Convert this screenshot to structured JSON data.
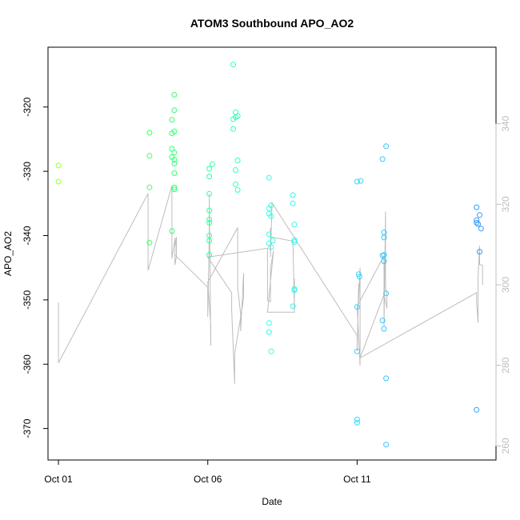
{
  "chart_data": {
    "type": "scatter",
    "title": "ATOM3 Southbound APO_AO2",
    "xlabel": "Date",
    "ylabel": "APO_AO2",
    "x_tick_labels": [
      "Oct 01",
      "Oct 06",
      "Oct 11"
    ],
    "x_tick_values": [
      0,
      5,
      10
    ],
    "x_range": [
      -0.35,
      14.65
    ],
    "y_range": [
      -374.9,
      -310.7
    ],
    "y_ticks": [
      -370,
      -360,
      -350,
      -340,
      -330,
      -320
    ],
    "y_tick_labels": [
      "-370",
      "-360",
      "-350",
      "-340",
      "-330",
      "-320"
    ],
    "y2_range": [
      256.5,
      359.0
    ],
    "y2_ticks": [
      260,
      280,
      300,
      320,
      340
    ],
    "y2_tick_labels": [
      "260",
      "280",
      "300",
      "320",
      "340"
    ],
    "grid": false,
    "legend": "none",
    "colors": {
      "point_gradient": [
        "#9aff33",
        "#33ff66",
        "#33ffe6",
        "#33ccff",
        "#3399ff"
      ],
      "line": "#bdbdbd",
      "axis": "#000000",
      "right_axis": "#bdbdbd"
    },
    "points": [
      {
        "x": 0.0,
        "y": -329.1
      },
      {
        "x": 0.0,
        "y": -331.6
      },
      {
        "x": 3.05,
        "y": -324.0
      },
      {
        "x": 3.05,
        "y": -327.6
      },
      {
        "x": 3.05,
        "y": -332.5
      },
      {
        "x": 3.05,
        "y": -341.1
      },
      {
        "x": 3.8,
        "y": -322.0
      },
      {
        "x": 3.8,
        "y": -324.1
      },
      {
        "x": 3.8,
        "y": -326.5
      },
      {
        "x": 3.8,
        "y": -327.8
      },
      {
        "x": 3.8,
        "y": -339.3
      },
      {
        "x": 3.88,
        "y": -318.1
      },
      {
        "x": 3.88,
        "y": -320.5
      },
      {
        "x": 3.88,
        "y": -323.8
      },
      {
        "x": 3.88,
        "y": -327.1
      },
      {
        "x": 3.88,
        "y": -328.2
      },
      {
        "x": 3.88,
        "y": -328.8
      },
      {
        "x": 3.88,
        "y": -330.3
      },
      {
        "x": 3.88,
        "y": -332.5
      },
      {
        "x": 3.88,
        "y": -332.8
      },
      {
        "x": 5.05,
        "y": -329.6
      },
      {
        "x": 5.05,
        "y": -330.8
      },
      {
        "x": 5.05,
        "y": -333.5
      },
      {
        "x": 5.05,
        "y": -336.1
      },
      {
        "x": 5.05,
        "y": -337.5
      },
      {
        "x": 5.05,
        "y": -338.0
      },
      {
        "x": 5.05,
        "y": -340.0
      },
      {
        "x": 5.05,
        "y": -340.8
      },
      {
        "x": 5.05,
        "y": -343.0
      },
      {
        "x": 5.15,
        "y": -328.9
      },
      {
        "x": 5.85,
        "y": -313.4
      },
      {
        "x": 5.85,
        "y": -321.9
      },
      {
        "x": 5.85,
        "y": -323.4
      },
      {
        "x": 5.93,
        "y": -320.8
      },
      {
        "x": 5.93,
        "y": -321.6
      },
      {
        "x": 5.93,
        "y": -329.8
      },
      {
        "x": 5.93,
        "y": -332.0
      },
      {
        "x": 6.0,
        "y": -321.4
      },
      {
        "x": 6.0,
        "y": -328.3
      },
      {
        "x": 6.0,
        "y": -332.9
      },
      {
        "x": 7.05,
        "y": -331.0
      },
      {
        "x": 7.05,
        "y": -335.8
      },
      {
        "x": 7.05,
        "y": -336.6
      },
      {
        "x": 7.05,
        "y": -339.8
      },
      {
        "x": 7.05,
        "y": -341.2
      },
      {
        "x": 7.05,
        "y": -353.6
      },
      {
        "x": 7.05,
        "y": -355.0
      },
      {
        "x": 7.12,
        "y": -335.3
      },
      {
        "x": 7.12,
        "y": -337.0
      },
      {
        "x": 7.12,
        "y": -341.8
      },
      {
        "x": 7.12,
        "y": -358.0
      },
      {
        "x": 7.18,
        "y": -340.8
      },
      {
        "x": 7.85,
        "y": -333.7
      },
      {
        "x": 7.85,
        "y": -335.0
      },
      {
        "x": 7.85,
        "y": -351.0
      },
      {
        "x": 7.9,
        "y": -338.3
      },
      {
        "x": 7.9,
        "y": -340.7
      },
      {
        "x": 7.9,
        "y": -341.0
      },
      {
        "x": 7.9,
        "y": -348.3
      },
      {
        "x": 7.9,
        "y": -348.5
      },
      {
        "x": 10.0,
        "y": -331.6
      },
      {
        "x": 10.0,
        "y": -351.1
      },
      {
        "x": 10.0,
        "y": -358.0
      },
      {
        "x": 10.0,
        "y": -368.6
      },
      {
        "x": 10.0,
        "y": -369.1
      },
      {
        "x": 10.05,
        "y": -346.0
      },
      {
        "x": 10.08,
        "y": -346.4
      },
      {
        "x": 10.12,
        "y": -331.5
      },
      {
        "x": 10.85,
        "y": -328.1
      },
      {
        "x": 10.85,
        "y": -343.1
      },
      {
        "x": 10.85,
        "y": -353.2
      },
      {
        "x": 10.9,
        "y": -339.5
      },
      {
        "x": 10.9,
        "y": -340.3
      },
      {
        "x": 10.9,
        "y": -343.0
      },
      {
        "x": 10.9,
        "y": -344.0
      },
      {
        "x": 10.9,
        "y": -354.5
      },
      {
        "x": 10.97,
        "y": -326.1
      },
      {
        "x": 10.97,
        "y": -349.0
      },
      {
        "x": 10.97,
        "y": -362.2
      },
      {
        "x": 10.97,
        "y": -372.5
      },
      {
        "x": 14.0,
        "y": -335.6
      },
      {
        "x": 14.0,
        "y": -337.6
      },
      {
        "x": 14.0,
        "y": -338.0
      },
      {
        "x": 14.0,
        "y": -367.1
      },
      {
        "x": 14.05,
        "y": -338.2
      },
      {
        "x": 14.1,
        "y": -336.8
      },
      {
        "x": 14.1,
        "y": -342.5
      },
      {
        "x": 14.15,
        "y": -338.9
      }
    ],
    "line_series": {
      "axis": "right",
      "x": [
        0.0,
        0.0,
        0.0,
        3.0,
        3.0,
        3.0,
        3.0,
        3.0,
        3.8,
        3.8,
        3.8,
        3.8,
        3.9,
        3.9,
        3.9,
        3.95,
        3.95,
        3.9,
        3.9,
        5.0,
        5.0,
        5.05,
        5.05,
        5.1,
        5.1,
        5.0,
        6.0,
        6.0,
        6.1,
        6.1,
        6.2,
        6.2,
        5.9,
        5.9,
        5.8,
        5.8,
        5.0,
        7.0,
        7.0,
        7.1,
        7.1,
        7.2,
        7.0,
        7.9,
        7.9,
        7.9,
        7.85,
        7.1,
        7.1,
        7.1,
        7.15,
        10.0,
        10.0,
        10.05,
        10.05,
        10.1,
        10.1,
        10.0,
        10.9,
        10.9,
        10.95,
        10.95,
        11.0,
        11.0,
        10.9,
        10.1,
        14.0,
        14.0,
        14.05,
        14.05,
        14.1,
        14.1,
        14.2,
        14.2
      ]
    }
  }
}
